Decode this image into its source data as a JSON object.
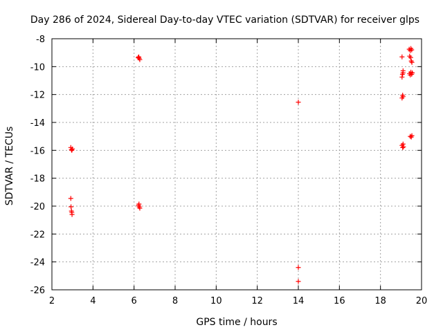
{
  "chart_data": {
    "type": "scatter",
    "title": "Day 286 of 2024, Sidereal Day-to-day VTEC variation (SDTVAR) for receiver glps",
    "xlabel": "GPS time / hours",
    "ylabel": "SDTVAR / TECUs",
    "xlim": [
      2,
      20
    ],
    "ylim": [
      -26,
      -8
    ],
    "grid": true,
    "marker": "+",
    "color": "#ff0000",
    "x_ticks": [
      2,
      4,
      6,
      8,
      10,
      12,
      14,
      16,
      18,
      20
    ],
    "y_ticks": [
      -8,
      -10,
      -12,
      -14,
      -16,
      -18,
      -20,
      -22,
      -24,
      -26
    ],
    "series": [
      {
        "name": "SDTVAR",
        "points": [
          [
            2.92,
            -15.8
          ],
          [
            2.95,
            -15.95
          ],
          [
            2.97,
            -16.0
          ],
          [
            3.0,
            -15.9
          ],
          [
            2.92,
            -19.45
          ],
          [
            2.93,
            -20.05
          ],
          [
            2.95,
            -20.35
          ],
          [
            2.97,
            -20.45
          ],
          [
            2.98,
            -20.6
          ],
          [
            6.2,
            -9.35
          ],
          [
            6.25,
            -9.4
          ],
          [
            6.28,
            -9.5
          ],
          [
            6.23,
            -9.3
          ],
          [
            6.22,
            -19.95
          ],
          [
            6.25,
            -20.05
          ],
          [
            6.28,
            -20.15
          ],
          [
            6.24,
            -19.85
          ],
          [
            14.0,
            -12.55
          ],
          [
            14.0,
            -24.4
          ],
          [
            14.0,
            -25.4
          ],
          [
            19.05,
            -9.3
          ],
          [
            19.1,
            -10.3
          ],
          [
            19.07,
            -10.55
          ],
          [
            19.05,
            -10.75
          ],
          [
            19.1,
            -10.45
          ],
          [
            19.08,
            -12.05
          ],
          [
            19.05,
            -12.25
          ],
          [
            19.1,
            -12.15
          ],
          [
            19.05,
            -15.65
          ],
          [
            19.08,
            -15.8
          ],
          [
            19.12,
            -15.75
          ],
          [
            19.1,
            -15.55
          ],
          [
            19.4,
            -8.75
          ],
          [
            19.45,
            -8.85
          ],
          [
            19.48,
            -8.7
          ],
          [
            19.52,
            -8.8
          ],
          [
            19.42,
            -9.25
          ],
          [
            19.47,
            -9.35
          ],
          [
            19.5,
            -9.6
          ],
          [
            19.53,
            -9.7
          ],
          [
            19.42,
            -10.5
          ],
          [
            19.45,
            -10.6
          ],
          [
            19.48,
            -10.4
          ],
          [
            19.55,
            -10.45
          ],
          [
            19.52,
            -10.55
          ],
          [
            19.45,
            -15.0
          ],
          [
            19.5,
            -15.05
          ],
          [
            19.53,
            -14.95
          ]
        ]
      }
    ]
  }
}
